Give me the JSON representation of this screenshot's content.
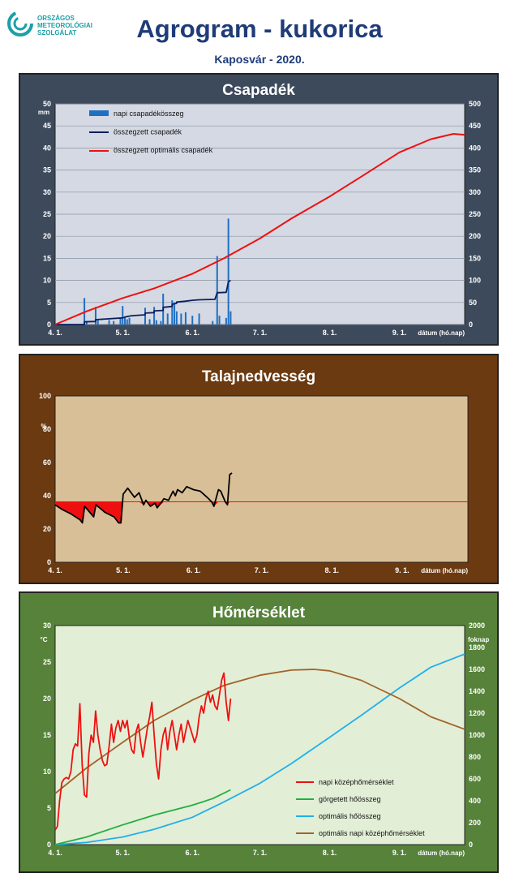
{
  "header": {
    "logo_text": "ORSZÁGOS\nMETEOROLÓGIAI\nSZOLGÁLAT",
    "title": "Agrogram - kukorica",
    "subtitle": "Kaposvár  - 2020."
  },
  "colors": {
    "bars": "#1f6fc2",
    "cumulative": "#0d1f5c",
    "optimal_precip": "#ee1010",
    "soil_line": "#000000",
    "soil_threshold": "#ee1010",
    "daily_temp": "#ee1010",
    "rolling_heat": "#1fb040",
    "optimal_heat": "#20b0e8",
    "optimal_temp": "#a0642a"
  },
  "chart_data": [
    {
      "id": "precip",
      "type": "bar",
      "title": "Csapadék",
      "ylabel": "mm",
      "y2label": "",
      "xlabel": "dátum (hó.nap)",
      "xlim": [
        "2020-04-01",
        "2020-09-30"
      ],
      "ylim": [
        0,
        50
      ],
      "y2lim": [
        0,
        500
      ],
      "x_ticks": [
        "4. 1.",
        "5. 1.",
        "6. 1.",
        "7. 1.",
        "8. 1.",
        "9. 1."
      ],
      "y_ticks": [
        "0",
        "5",
        "10",
        "15",
        "20",
        "25",
        "30",
        "35",
        "40",
        "45",
        "50"
      ],
      "y2_ticks": [
        "0",
        "50",
        "100",
        "150",
        "200",
        "250",
        "300",
        "350",
        "400",
        "450",
        "500"
      ],
      "legend": [
        "napi csapadékösszeg",
        "összegzett csapadék",
        "összegzett optimális  csapadék"
      ],
      "daily_precip": [
        {
          "date": "2020-04-14",
          "mm": 6.0
        },
        {
          "date": "2020-04-15",
          "mm": 0.8
        },
        {
          "date": "2020-04-19",
          "mm": 4.0
        },
        {
          "date": "2020-04-20",
          "mm": 1.2
        },
        {
          "date": "2020-04-25",
          "mm": 1.0
        },
        {
          "date": "2020-04-27",
          "mm": 0.8
        },
        {
          "date": "2020-04-30",
          "mm": 1.5
        },
        {
          "date": "2020-05-01",
          "mm": 4.2
        },
        {
          "date": "2020-05-02",
          "mm": 1.8
        },
        {
          "date": "2020-05-03",
          "mm": 1.2
        },
        {
          "date": "2020-05-04",
          "mm": 1.5
        },
        {
          "date": "2020-05-11",
          "mm": 3.8
        },
        {
          "date": "2020-05-13",
          "mm": 1.2
        },
        {
          "date": "2020-05-15",
          "mm": 4.0
        },
        {
          "date": "2020-05-16",
          "mm": 1.0
        },
        {
          "date": "2020-05-18",
          "mm": 0.8
        },
        {
          "date": "2020-05-19",
          "mm": 7.0
        },
        {
          "date": "2020-05-21",
          "mm": 2.5
        },
        {
          "date": "2020-05-23",
          "mm": 5.5
        },
        {
          "date": "2020-05-24",
          "mm": 5.0
        },
        {
          "date": "2020-05-25",
          "mm": 3.0
        },
        {
          "date": "2020-05-27",
          "mm": 2.5
        },
        {
          "date": "2020-05-29",
          "mm": 2.8
        },
        {
          "date": "2020-06-01",
          "mm": 2.0
        },
        {
          "date": "2020-06-04",
          "mm": 2.5
        },
        {
          "date": "2020-06-10",
          "mm": 0.8
        },
        {
          "date": "2020-06-12",
          "mm": 15.5
        },
        {
          "date": "2020-06-13",
          "mm": 2.0
        },
        {
          "date": "2020-06-16",
          "mm": 1.5
        },
        {
          "date": "2020-06-17",
          "mm": 24.0
        },
        {
          "date": "2020-06-18",
          "mm": 3.0
        }
      ],
      "cumulative_precip": [
        {
          "date": "2020-04-01",
          "mm": 0
        },
        {
          "date": "2020-04-14",
          "mm": 0
        },
        {
          "date": "2020-04-14",
          "mm": 6
        },
        {
          "date": "2020-04-19",
          "mm": 7
        },
        {
          "date": "2020-04-19",
          "mm": 11
        },
        {
          "date": "2020-05-01",
          "mm": 15
        },
        {
          "date": "2020-05-02",
          "mm": 17
        },
        {
          "date": "2020-05-05",
          "mm": 20
        },
        {
          "date": "2020-05-11",
          "mm": 22
        },
        {
          "date": "2020-05-11",
          "mm": 26
        },
        {
          "date": "2020-05-15",
          "mm": 27
        },
        {
          "date": "2020-05-15",
          "mm": 31
        },
        {
          "date": "2020-05-19",
          "mm": 32
        },
        {
          "date": "2020-05-19",
          "mm": 39
        },
        {
          "date": "2020-05-23",
          "mm": 41
        },
        {
          "date": "2020-05-23",
          "mm": 46
        },
        {
          "date": "2020-05-25",
          "mm": 48
        },
        {
          "date": "2020-05-25",
          "mm": 51
        },
        {
          "date": "2020-05-29",
          "mm": 53
        },
        {
          "date": "2020-06-01",
          "mm": 55
        },
        {
          "date": "2020-06-04",
          "mm": 56
        },
        {
          "date": "2020-06-11",
          "mm": 57
        },
        {
          "date": "2020-06-12",
          "mm": 72
        },
        {
          "date": "2020-06-16",
          "mm": 73
        },
        {
          "date": "2020-06-17",
          "mm": 97
        },
        {
          "date": "2020-06-18",
          "mm": 100
        }
      ],
      "optimal_cumulative_precip": [
        {
          "date": "2020-04-01",
          "mm": 0
        },
        {
          "date": "2020-04-15",
          "mm": 30
        },
        {
          "date": "2020-05-01",
          "mm": 60
        },
        {
          "date": "2020-05-15",
          "mm": 82
        },
        {
          "date": "2020-06-01",
          "mm": 115
        },
        {
          "date": "2020-06-15",
          "mm": 150
        },
        {
          "date": "2020-07-01",
          "mm": 195
        },
        {
          "date": "2020-07-15",
          "mm": 240
        },
        {
          "date": "2020-08-01",
          "mm": 290
        },
        {
          "date": "2020-08-15",
          "mm": 335
        },
        {
          "date": "2020-09-01",
          "mm": 390
        },
        {
          "date": "2020-09-15",
          "mm": 420
        },
        {
          "date": "2020-09-25",
          "mm": 432
        },
        {
          "date": "2020-09-30",
          "mm": 430
        }
      ]
    },
    {
      "id": "soil",
      "type": "line",
      "title": "Talajnedvesség",
      "ylabel": "%",
      "xlabel": "dátum (hó.nap)",
      "xlim": [
        "2020-04-01",
        "2020-09-30"
      ],
      "ylim": [
        0,
        110
      ],
      "y_ticks": [
        "0",
        "20",
        "40",
        "60",
        "80",
        "100"
      ],
      "x_ticks": [
        "4. 1.",
        "5. 1.",
        "6. 1.",
        "7. 1.",
        "8. 1.",
        "9. 1."
      ],
      "threshold": 40,
      "soil_moisture": [
        {
          "date": "2020-04-01",
          "pct": 38
        },
        {
          "date": "2020-04-04",
          "pct": 35
        },
        {
          "date": "2020-04-08",
          "pct": 32
        },
        {
          "date": "2020-04-12",
          "pct": 28
        },
        {
          "date": "2020-04-13",
          "pct": 26
        },
        {
          "date": "2020-04-14",
          "pct": 37
        },
        {
          "date": "2020-04-18",
          "pct": 30
        },
        {
          "date": "2020-04-19",
          "pct": 38
        },
        {
          "date": "2020-04-23",
          "pct": 33
        },
        {
          "date": "2020-04-27",
          "pct": 30
        },
        {
          "date": "2020-04-29",
          "pct": 26
        },
        {
          "date": "2020-04-30",
          "pct": 26
        },
        {
          "date": "2020-05-01",
          "pct": 45
        },
        {
          "date": "2020-05-03",
          "pct": 49
        },
        {
          "date": "2020-05-06",
          "pct": 43
        },
        {
          "date": "2020-05-08",
          "pct": 46
        },
        {
          "date": "2020-05-10",
          "pct": 38
        },
        {
          "date": "2020-05-11",
          "pct": 41
        },
        {
          "date": "2020-05-13",
          "pct": 37
        },
        {
          "date": "2020-05-15",
          "pct": 39
        },
        {
          "date": "2020-05-16",
          "pct": 36
        },
        {
          "date": "2020-05-19",
          "pct": 42
        },
        {
          "date": "2020-05-21",
          "pct": 41
        },
        {
          "date": "2020-05-23",
          "pct": 47
        },
        {
          "date": "2020-05-24",
          "pct": 44
        },
        {
          "date": "2020-05-25",
          "pct": 48
        },
        {
          "date": "2020-05-27",
          "pct": 46
        },
        {
          "date": "2020-05-29",
          "pct": 50
        },
        {
          "date": "2020-06-01",
          "pct": 48
        },
        {
          "date": "2020-06-04",
          "pct": 47
        },
        {
          "date": "2020-06-07",
          "pct": 43
        },
        {
          "date": "2020-06-09",
          "pct": 40
        },
        {
          "date": "2020-06-10",
          "pct": 37
        },
        {
          "date": "2020-06-12",
          "pct": 48
        },
        {
          "date": "2020-06-13",
          "pct": 47
        },
        {
          "date": "2020-06-15",
          "pct": 40
        },
        {
          "date": "2020-06-16",
          "pct": 38
        },
        {
          "date": "2020-06-17",
          "pct": 58
        },
        {
          "date": "2020-06-18",
          "pct": 59
        }
      ]
    },
    {
      "id": "temp",
      "type": "line",
      "title": "Hőmérséklet",
      "ylabel": "°C",
      "y2label": "foknap",
      "xlabel": "dátum (hó.nap)",
      "xlim": [
        "2020-04-01",
        "2020-09-30"
      ],
      "ylim": [
        0,
        30
      ],
      "y2lim": [
        0,
        2000
      ],
      "y_ticks": [
        "0",
        "5",
        "10",
        "15",
        "20",
        "25",
        "30"
      ],
      "y2_ticks": [
        "0",
        "200",
        "400",
        "600",
        "800",
        "1000",
        "1200",
        "1400",
        "1600",
        "1800",
        "2000"
      ],
      "x_ticks": [
        "4. 1.",
        "5. 1.",
        "6. 1.",
        "7. 1.",
        "8. 1.",
        "9. 1."
      ],
      "legend": [
        "napi középhőmérséklet",
        "görgetett hőösszeg",
        "optimális hőösszeg",
        "optimális napi középhőmérséklet"
      ],
      "daily_mean_temp": [
        {
          "date": "2020-04-01",
          "t": 2.0
        },
        {
          "date": "2020-04-02",
          "t": 2.5
        },
        {
          "date": "2020-04-03",
          "t": 6.0
        },
        {
          "date": "2020-04-04",
          "t": 8.5
        },
        {
          "date": "2020-04-05",
          "t": 9.0
        },
        {
          "date": "2020-04-06",
          "t": 9.2
        },
        {
          "date": "2020-04-07",
          "t": 9.0
        },
        {
          "date": "2020-04-08",
          "t": 10.0
        },
        {
          "date": "2020-04-09",
          "t": 13.0
        },
        {
          "date": "2020-04-10",
          "t": 13.8
        },
        {
          "date": "2020-04-11",
          "t": 13.5
        },
        {
          "date": "2020-04-12",
          "t": 19.3
        },
        {
          "date": "2020-04-13",
          "t": 11.0
        },
        {
          "date": "2020-04-14",
          "t": 6.8
        },
        {
          "date": "2020-04-15",
          "t": 6.5
        },
        {
          "date": "2020-04-16",
          "t": 12.5
        },
        {
          "date": "2020-04-17",
          "t": 15.0
        },
        {
          "date": "2020-04-18",
          "t": 14.0
        },
        {
          "date": "2020-04-19",
          "t": 18.3
        },
        {
          "date": "2020-04-20",
          "t": 15.0
        },
        {
          "date": "2020-04-21",
          "t": 13.0
        },
        {
          "date": "2020-04-22",
          "t": 11.5
        },
        {
          "date": "2020-04-23",
          "t": 10.8
        },
        {
          "date": "2020-04-24",
          "t": 11.0
        },
        {
          "date": "2020-04-25",
          "t": 13.5
        },
        {
          "date": "2020-04-26",
          "t": 16.5
        },
        {
          "date": "2020-04-27",
          "t": 14.0
        },
        {
          "date": "2020-04-28",
          "t": 16.0
        },
        {
          "date": "2020-04-29",
          "t": 17.0
        },
        {
          "date": "2020-04-30",
          "t": 15.5
        },
        {
          "date": "2020-05-01",
          "t": 17.0
        },
        {
          "date": "2020-05-02",
          "t": 16.0
        },
        {
          "date": "2020-05-03",
          "t": 17.0
        },
        {
          "date": "2020-05-04",
          "t": 14.5
        },
        {
          "date": "2020-05-05",
          "t": 13.0
        },
        {
          "date": "2020-05-06",
          "t": 12.5
        },
        {
          "date": "2020-05-07",
          "t": 15.5
        },
        {
          "date": "2020-05-08",
          "t": 16.5
        },
        {
          "date": "2020-05-09",
          "t": 14.0
        },
        {
          "date": "2020-05-10",
          "t": 12.0
        },
        {
          "date": "2020-05-11",
          "t": 14.0
        },
        {
          "date": "2020-05-12",
          "t": 16.0
        },
        {
          "date": "2020-05-13",
          "t": 17.5
        },
        {
          "date": "2020-05-14",
          "t": 19.5
        },
        {
          "date": "2020-05-15",
          "t": 15.0
        },
        {
          "date": "2020-05-16",
          "t": 11.0
        },
        {
          "date": "2020-05-17",
          "t": 9.0
        },
        {
          "date": "2020-05-18",
          "t": 13.0
        },
        {
          "date": "2020-05-19",
          "t": 15.0
        },
        {
          "date": "2020-05-20",
          "t": 16.0
        },
        {
          "date": "2020-05-21",
          "t": 13.0
        },
        {
          "date": "2020-05-22",
          "t": 15.5
        },
        {
          "date": "2020-05-23",
          "t": 17.0
        },
        {
          "date": "2020-05-24",
          "t": 15.0
        },
        {
          "date": "2020-05-25",
          "t": 13.0
        },
        {
          "date": "2020-05-26",
          "t": 15.0
        },
        {
          "date": "2020-05-27",
          "t": 16.5
        },
        {
          "date": "2020-05-28",
          "t": 14.0
        },
        {
          "date": "2020-05-29",
          "t": 15.5
        },
        {
          "date": "2020-05-30",
          "t": 17.0
        },
        {
          "date": "2020-05-31",
          "t": 16.0
        },
        {
          "date": "2020-06-01",
          "t": 15.0
        },
        {
          "date": "2020-06-02",
          "t": 14.0
        },
        {
          "date": "2020-06-03",
          "t": 15.0
        },
        {
          "date": "2020-06-04",
          "t": 17.5
        },
        {
          "date": "2020-06-05",
          "t": 19.0
        },
        {
          "date": "2020-06-06",
          "t": 18.0
        },
        {
          "date": "2020-06-07",
          "t": 20.0
        },
        {
          "date": "2020-06-08",
          "t": 21.0
        },
        {
          "date": "2020-06-09",
          "t": 19.5
        },
        {
          "date": "2020-06-10",
          "t": 20.5
        },
        {
          "date": "2020-06-11",
          "t": 19.0
        },
        {
          "date": "2020-06-12",
          "t": 18.5
        },
        {
          "date": "2020-06-13",
          "t": 20.5
        },
        {
          "date": "2020-06-14",
          "t": 22.5
        },
        {
          "date": "2020-06-15",
          "t": 23.5
        },
        {
          "date": "2020-06-16",
          "t": 19.5
        },
        {
          "date": "2020-06-17",
          "t": 17.0
        },
        {
          "date": "2020-06-18",
          "t": 20.0
        }
      ],
      "rolling_heat_sum": [
        {
          "date": "2020-04-01",
          "v": 0
        },
        {
          "date": "2020-04-15",
          "v": 70
        },
        {
          "date": "2020-05-01",
          "v": 180
        },
        {
          "date": "2020-05-15",
          "v": 270
        },
        {
          "date": "2020-06-01",
          "v": 360
        },
        {
          "date": "2020-06-10",
          "v": 420
        },
        {
          "date": "2020-06-18",
          "v": 500
        }
      ],
      "optimal_heat_sum": [
        {
          "date": "2020-04-01",
          "v": 0
        },
        {
          "date": "2020-04-15",
          "v": 20
        },
        {
          "date": "2020-05-01",
          "v": 70
        },
        {
          "date": "2020-05-15",
          "v": 140
        },
        {
          "date": "2020-06-01",
          "v": 250
        },
        {
          "date": "2020-06-15",
          "v": 390
        },
        {
          "date": "2020-07-01",
          "v": 560
        },
        {
          "date": "2020-07-15",
          "v": 740
        },
        {
          "date": "2020-08-01",
          "v": 980
        },
        {
          "date": "2020-08-15",
          "v": 1180
        },
        {
          "date": "2020-09-01",
          "v": 1430
        },
        {
          "date": "2020-09-15",
          "v": 1620
        },
        {
          "date": "2020-09-30",
          "v": 1740
        }
      ],
      "optimal_daily_mean_temp": [
        {
          "date": "2020-04-01",
          "t": 7.0
        },
        {
          "date": "2020-04-15",
          "t": 10.5
        },
        {
          "date": "2020-05-01",
          "t": 14.0
        },
        {
          "date": "2020-05-15",
          "t": 17.0
        },
        {
          "date": "2020-06-01",
          "t": 19.8
        },
        {
          "date": "2020-06-15",
          "t": 21.8
        },
        {
          "date": "2020-07-01",
          "t": 23.2
        },
        {
          "date": "2020-07-15",
          "t": 23.9
        },
        {
          "date": "2020-07-25",
          "t": 24.0
        },
        {
          "date": "2020-08-01",
          "t": 23.8
        },
        {
          "date": "2020-08-15",
          "t": 22.5
        },
        {
          "date": "2020-09-01",
          "t": 20.0
        },
        {
          "date": "2020-09-15",
          "t": 17.5
        },
        {
          "date": "2020-09-30",
          "t": 15.8
        }
      ]
    }
  ]
}
